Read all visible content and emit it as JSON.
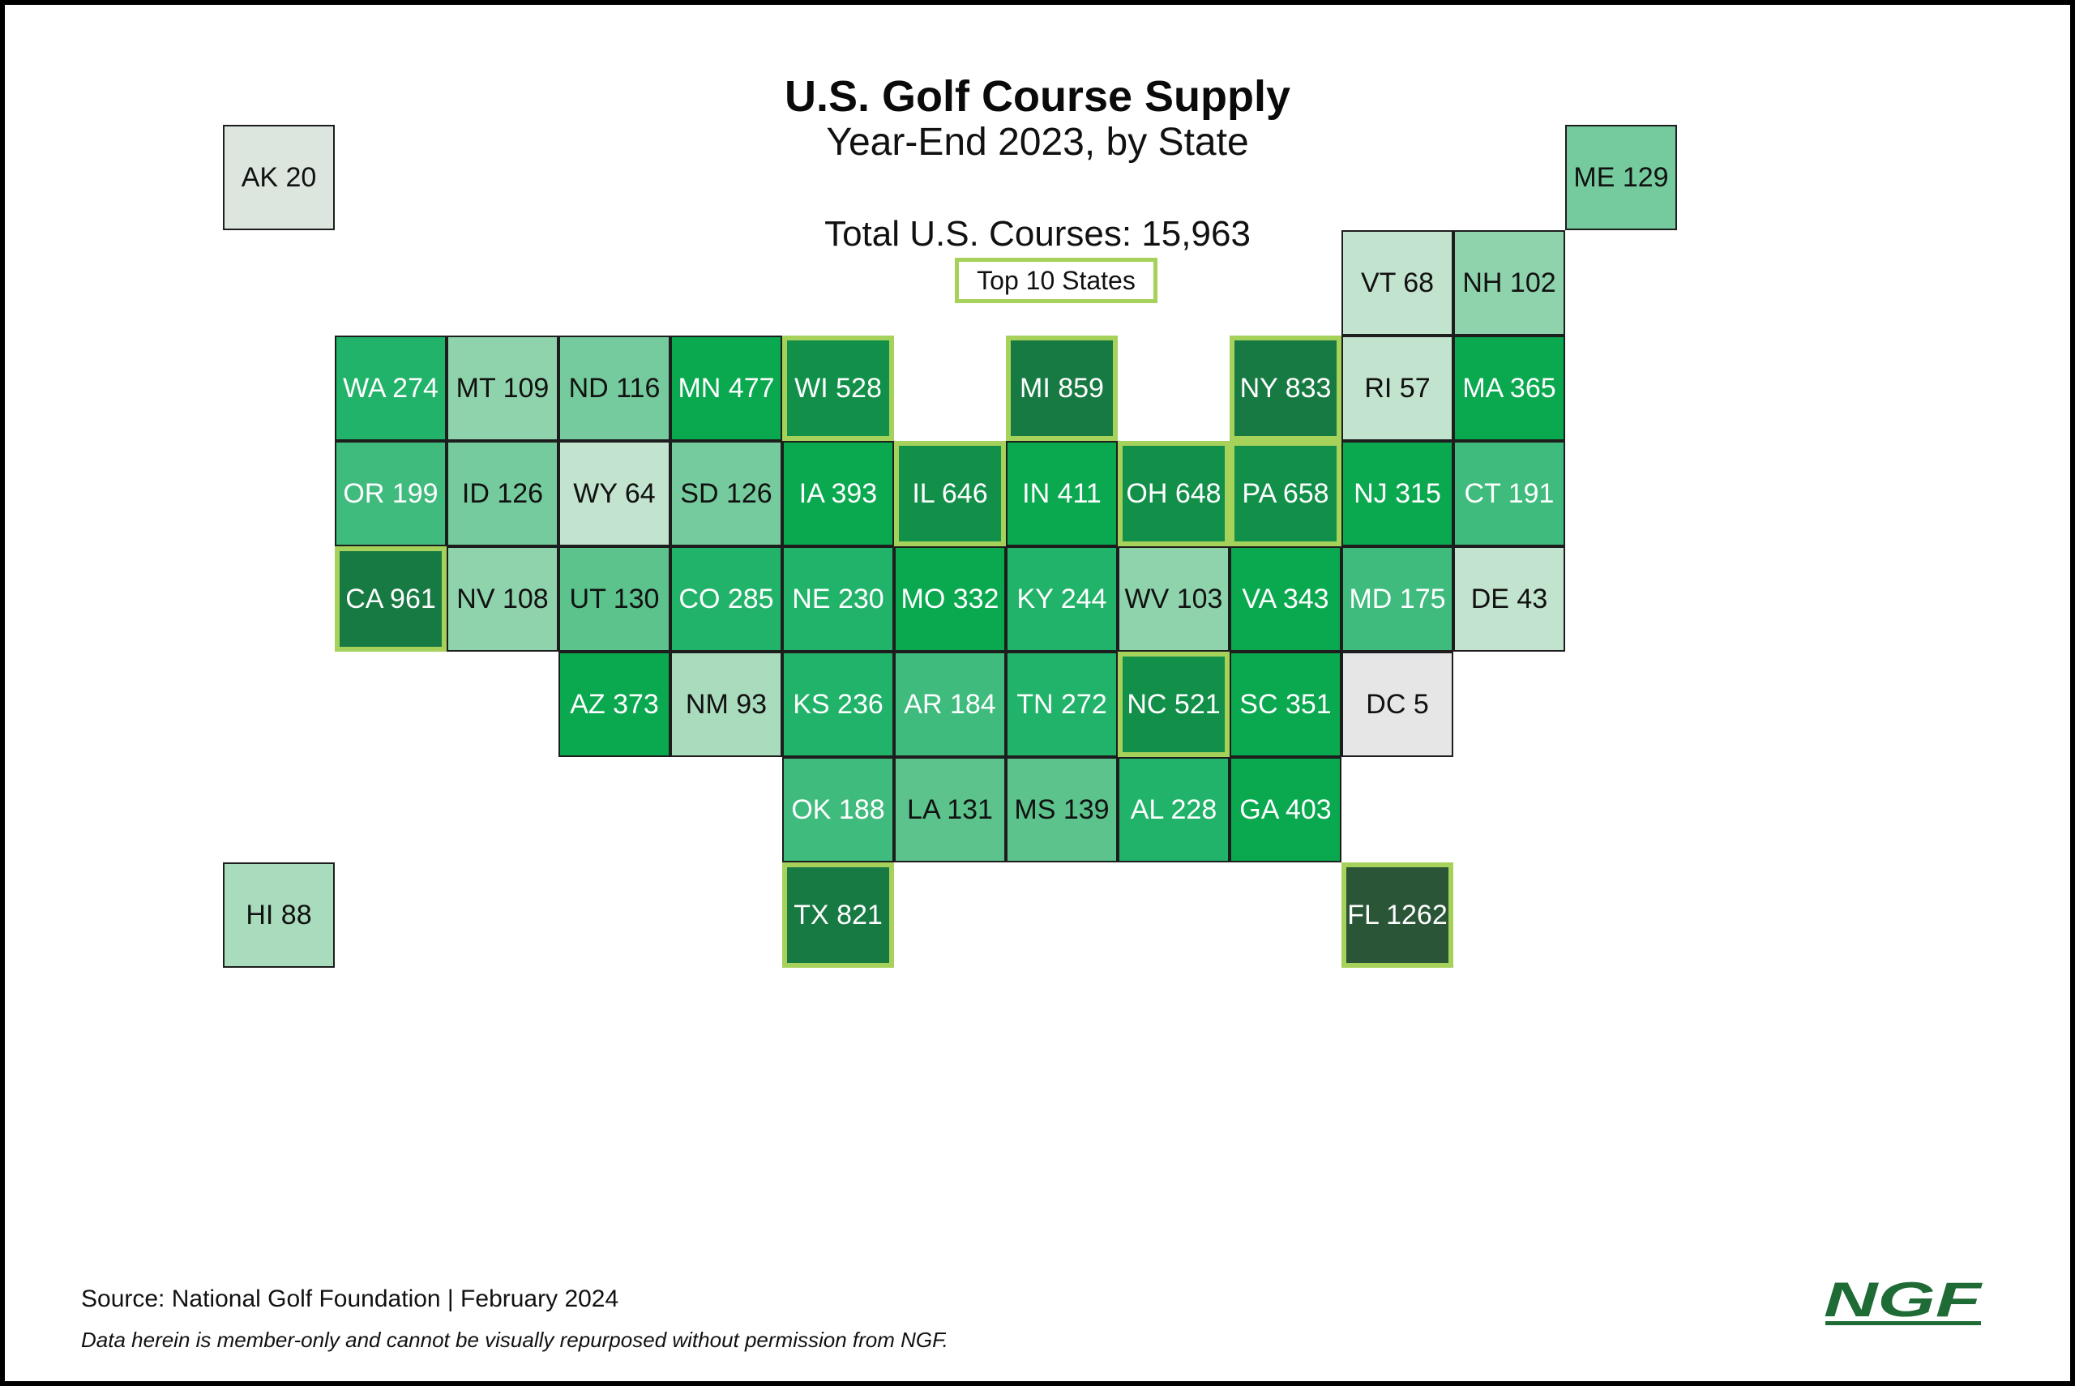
{
  "header": {
    "title": "U.S. Golf Course Supply",
    "subtitle": "Year-End 2023, by State",
    "total": "Total U.S. Courses: 15,963",
    "legend_label": "Top 10 States"
  },
  "colors": {
    "top10_border": "#a6d15a",
    "scale": [
      "#e6e6e6",
      "#dce6df",
      "#c2e3cd",
      "#a9dbbd",
      "#8fd3ad",
      "#75cb9d",
      "#5cc38d",
      "#3fbb7d",
      "#22b36a",
      "#0aa84f",
      "#12904a",
      "#187a43",
      "#2a5537"
    ]
  },
  "map": {
    "states": [
      {
        "abbr": "AK",
        "value": 20,
        "label": "AK 20",
        "top10": false
      },
      {
        "abbr": "ME",
        "value": 129,
        "label": "ME 129",
        "top10": false
      },
      {
        "abbr": "VT",
        "value": 68,
        "label": "VT 68",
        "top10": false
      },
      {
        "abbr": "NH",
        "value": 102,
        "label": "NH 102",
        "top10": false
      },
      {
        "abbr": "WA",
        "value": 274,
        "label": "WA 274",
        "top10": false
      },
      {
        "abbr": "MT",
        "value": 109,
        "label": "MT 109",
        "top10": false
      },
      {
        "abbr": "ND",
        "value": 116,
        "label": "ND 116",
        "top10": false
      },
      {
        "abbr": "MN",
        "value": 477,
        "label": "MN 477",
        "top10": false
      },
      {
        "abbr": "WI",
        "value": 528,
        "label": "WI 528",
        "top10": true
      },
      {
        "abbr": "MI",
        "value": 859,
        "label": "MI 859",
        "top10": true
      },
      {
        "abbr": "NY",
        "value": 833,
        "label": "NY 833",
        "top10": true
      },
      {
        "abbr": "RI",
        "value": 57,
        "label": "RI 57",
        "top10": false
      },
      {
        "abbr": "MA",
        "value": 365,
        "label": "MA 365",
        "top10": false
      },
      {
        "abbr": "OR",
        "value": 199,
        "label": "OR 199",
        "top10": false
      },
      {
        "abbr": "ID",
        "value": 126,
        "label": "ID 126",
        "top10": false
      },
      {
        "abbr": "WY",
        "value": 64,
        "label": "WY 64",
        "top10": false
      },
      {
        "abbr": "SD",
        "value": 126,
        "label": "SD 126",
        "top10": false
      },
      {
        "abbr": "IA",
        "value": 393,
        "label": "IA 393",
        "top10": false
      },
      {
        "abbr": "IL",
        "value": 646,
        "label": "IL 646",
        "top10": true
      },
      {
        "abbr": "IN",
        "value": 411,
        "label": "IN 411",
        "top10": false
      },
      {
        "abbr": "OH",
        "value": 648,
        "label": "OH 648",
        "top10": true
      },
      {
        "abbr": "PA",
        "value": 658,
        "label": "PA 658",
        "top10": true
      },
      {
        "abbr": "NJ",
        "value": 315,
        "label": "NJ 315",
        "top10": false
      },
      {
        "abbr": "CT",
        "value": 191,
        "label": "CT 191",
        "top10": false
      },
      {
        "abbr": "CA",
        "value": 961,
        "label": "CA 961",
        "top10": true
      },
      {
        "abbr": "NV",
        "value": 108,
        "label": "NV 108",
        "top10": false
      },
      {
        "abbr": "UT",
        "value": 130,
        "label": "UT 130",
        "top10": false
      },
      {
        "abbr": "CO",
        "value": 285,
        "label": "CO 285",
        "top10": false
      },
      {
        "abbr": "NE",
        "value": 230,
        "label": "NE 230",
        "top10": false
      },
      {
        "abbr": "MO",
        "value": 332,
        "label": "MO 332",
        "top10": false
      },
      {
        "abbr": "KY",
        "value": 244,
        "label": "KY 244",
        "top10": false
      },
      {
        "abbr": "WV",
        "value": 103,
        "label": "WV 103",
        "top10": false
      },
      {
        "abbr": "VA",
        "value": 343,
        "label": "VA 343",
        "top10": false
      },
      {
        "abbr": "MD",
        "value": 175,
        "label": "MD 175",
        "top10": false
      },
      {
        "abbr": "DE",
        "value": 43,
        "label": "DE 43",
        "top10": false
      },
      {
        "abbr": "AZ",
        "value": 373,
        "label": "AZ 373",
        "top10": false
      },
      {
        "abbr": "NM",
        "value": 93,
        "label": "NM 93",
        "top10": false
      },
      {
        "abbr": "KS",
        "value": 236,
        "label": "KS 236",
        "top10": false
      },
      {
        "abbr": "AR",
        "value": 184,
        "label": "AR 184",
        "top10": false
      },
      {
        "abbr": "TN",
        "value": 272,
        "label": "TN 272",
        "top10": false
      },
      {
        "abbr": "NC",
        "value": 521,
        "label": "NC 521",
        "top10": true
      },
      {
        "abbr": "SC",
        "value": 351,
        "label": "SC 351",
        "top10": false
      },
      {
        "abbr": "DC",
        "value": 5,
        "label": "DC 5",
        "top10": false
      },
      {
        "abbr": "OK",
        "value": 188,
        "label": "OK 188",
        "top10": false
      },
      {
        "abbr": "LA",
        "value": 131,
        "label": "LA 131",
        "top10": false
      },
      {
        "abbr": "MS",
        "value": 139,
        "label": "MS 139",
        "top10": false
      },
      {
        "abbr": "AL",
        "value": 228,
        "label": "AL 228",
        "top10": false
      },
      {
        "abbr": "GA",
        "value": 403,
        "label": "GA 403",
        "top10": false
      },
      {
        "abbr": "HI",
        "value": 88,
        "label": "HI 88",
        "top10": false
      },
      {
        "abbr": "TX",
        "value": 821,
        "label": "TX 821",
        "top10": true
      },
      {
        "abbr": "FL",
        "value": 1262,
        "label": "FL 1262",
        "top10": true
      }
    ]
  },
  "footer": {
    "source": "Source: National Golf Foundation | February 2024",
    "note": "Data herein is member-only and cannot be visually repurposed without permission from NGF.",
    "logo_text": "NGF"
  }
}
